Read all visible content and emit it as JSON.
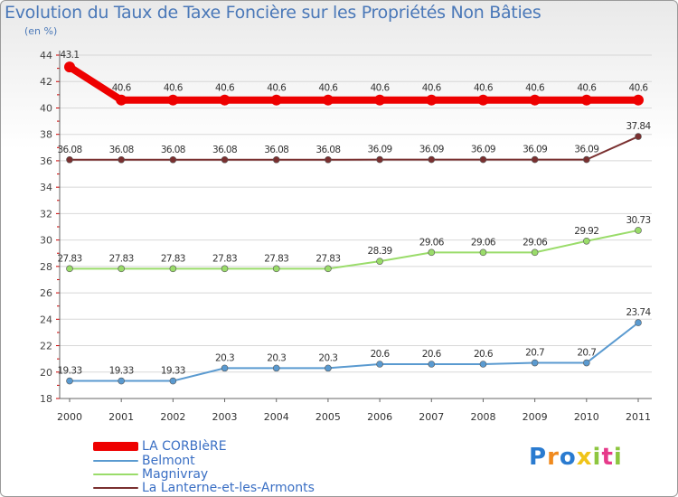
{
  "header": {
    "title": "Evolution du Taux de Taxe Foncière sur les Propriétés Non Bâties",
    "unit": "(en %)"
  },
  "chart_data": {
    "type": "line",
    "title": "Evolution du Taux de Taxe Foncière sur les Propriétés Non Bâties",
    "ylabel": "(en %)",
    "xlabel": "",
    "x": [
      "2000",
      "2001",
      "2002",
      "2003",
      "2004",
      "2005",
      "2006",
      "2007",
      "2008",
      "2009",
      "2010",
      "2011"
    ],
    "ylim": [
      18,
      44
    ],
    "yticks": [
      18,
      20,
      22,
      24,
      26,
      28,
      30,
      32,
      34,
      36,
      38,
      40,
      42,
      44
    ],
    "grid": "horizontal",
    "legend_position": "bottom-left",
    "series": [
      {
        "name": "LA CORBIèRE",
        "color": "#ee0000",
        "values": [
          43.1,
          40.6,
          40.6,
          40.6,
          40.6,
          40.6,
          40.6,
          40.6,
          40.6,
          40.6,
          40.6,
          40.6
        ],
        "labels": [
          "43.1",
          "40.6",
          "40.6",
          "40.6",
          "40.6",
          "40.6",
          "40.6",
          "40.6",
          "40.6",
          "40.6",
          "40.6",
          "40.6"
        ]
      },
      {
        "name": "Belmont",
        "color": "#5a9ad0",
        "values": [
          19.33,
          19.33,
          19.33,
          20.3,
          20.3,
          20.3,
          20.6,
          20.6,
          20.6,
          20.7,
          20.7,
          23.74
        ],
        "labels": [
          "19.33",
          "19.33",
          "19.33",
          "20.3",
          "20.3",
          "20.3",
          "20.6",
          "20.6",
          "20.6",
          "20.7",
          "20.7",
          "23.74"
        ]
      },
      {
        "name": "Magnivray",
        "color": "#9adc6a",
        "values": [
          27.83,
          27.83,
          27.83,
          27.83,
          27.83,
          27.83,
          28.39,
          29.06,
          29.06,
          29.06,
          29.92,
          30.73
        ],
        "labels": [
          "27.83",
          "27.83",
          "27.83",
          "27.83",
          "27.83",
          "27.83",
          "28.39",
          "29.06",
          "29.06",
          "29.06",
          "29.92",
          "30.73"
        ]
      },
      {
        "name": "La Lanterne-et-les-Armonts",
        "color": "#7a3030",
        "values": [
          36.08,
          36.08,
          36.08,
          36.08,
          36.08,
          36.08,
          36.09,
          36.09,
          36.09,
          36.09,
          36.09,
          37.84
        ],
        "labels": [
          "36.08",
          "36.08",
          "36.08",
          "36.08",
          "36.08",
          "36.08",
          "36.09",
          "36.09",
          "36.09",
          "36.09",
          "36.09",
          "37.84"
        ]
      }
    ]
  },
  "legend": [
    {
      "label": "LA CORBIèRE",
      "color": "#ee0000"
    },
    {
      "label": "Belmont",
      "color": "#5a9ad0"
    },
    {
      "label": "Magnivray",
      "color": "#9adc6a"
    },
    {
      "label": "La Lanterne-et-les-Armonts",
      "color": "#7a3030"
    }
  ],
  "logo": {
    "text": "Proxiti"
  }
}
